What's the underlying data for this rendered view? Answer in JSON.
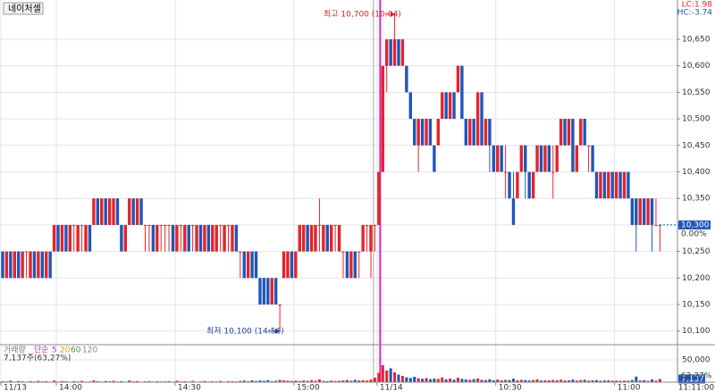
{
  "chart_data": {
    "type": "candlestick",
    "stock_name": "네이처셀",
    "lc_label": "LC:1.98",
    "hc_label": "HC:-3.74",
    "high_annotation": "최고 10,700 (10:04)",
    "low_annotation": "최저 10,100 (14:56)",
    "current_price": {
      "value": 10300,
      "label": "10,300"
    },
    "change_label": "0.00%",
    "time_label": "11:11:00",
    "up_color": "#e3232c",
    "down_color": "#1f56b8",
    "grid": true,
    "ylim": [
      10076,
      10724
    ],
    "yticks": [
      {
        "value": 10100,
        "label": "10,100"
      },
      {
        "value": 10150,
        "label": "10,150"
      },
      {
        "value": 10200,
        "label": "10,200"
      },
      {
        "value": 10250,
        "label": "10,250"
      },
      {
        "value": 10300,
        "label": "10,300"
      },
      {
        "value": 10350,
        "label": "10,350"
      },
      {
        "value": 10400,
        "label": "10,400"
      },
      {
        "value": 10450,
        "label": "10,450"
      },
      {
        "value": 10500,
        "label": "10,500"
      },
      {
        "value": 10550,
        "label": "10,550"
      },
      {
        "value": 10600,
        "label": "10,600"
      },
      {
        "value": 10650,
        "label": "10,650"
      }
    ],
    "volume_legend": [
      "거래량",
      "단순",
      "5",
      "20",
      "60",
      "120"
    ],
    "volume_info": "7,137주(63,27%)",
    "last_volume": {
      "value": 7137,
      "label": "7,137"
    },
    "volume_ratio_label": "63.27%",
    "volume_ylim": [
      0,
      80000
    ],
    "volume_yticks": [
      {
        "value": 50000,
        "label": "50,000"
      }
    ],
    "categories": [
      "11/13",
      null,
      null,
      null,
      null,
      null,
      null,
      null,
      null,
      null,
      null,
      null,
      null,
      null,
      "14:00",
      null,
      null,
      null,
      null,
      null,
      null,
      null,
      null,
      null,
      null,
      null,
      null,
      null,
      null,
      null,
      null,
      null,
      null,
      null,
      null,
      null,
      null,
      null,
      null,
      null,
      null,
      null,
      null,
      null,
      "14:30",
      null,
      null,
      null,
      null,
      null,
      null,
      null,
      null,
      null,
      null,
      null,
      null,
      null,
      null,
      null,
      null,
      null,
      null,
      null,
      null,
      null,
      null,
      null,
      null,
      null,
      null,
      null,
      null,
      null,
      "15:00",
      null,
      null,
      null,
      null,
      null,
      null,
      null,
      null,
      null,
      null,
      null,
      null,
      null,
      null,
      null,
      null,
      null,
      null,
      null,
      null,
      "11/14",
      null,
      null,
      null,
      null,
      null,
      null,
      null,
      null,
      null,
      null,
      null,
      null,
      null,
      null,
      null,
      null,
      null,
      null,
      null,
      null,
      null,
      null,
      null,
      null,
      null,
      null,
      null,
      null,
      null,
      "10:30",
      null,
      null,
      null,
      null,
      null,
      null,
      null,
      null,
      null,
      null,
      null,
      null,
      null,
      null,
      null,
      null,
      null,
      null,
      null,
      null,
      null,
      null,
      null,
      null,
      null,
      null,
      null,
      null,
      null,
      "11:00",
      null,
      null,
      null,
      null,
      null,
      null,
      null,
      null,
      null,
      null,
      null
    ],
    "candles": [
      [
        10250,
        10250,
        10200,
        10200
      ],
      [
        10200,
        10250,
        10200,
        10250
      ],
      [
        10250,
        10250,
        10200,
        10200
      ],
      [
        10200,
        10250,
        10200,
        10250
      ],
      [
        10250,
        10250,
        10200,
        10200
      ],
      [
        10200,
        10250,
        10200,
        10250
      ],
      [
        10250,
        10250,
        10200,
        10250
      ],
      [
        10200,
        10250,
        10200,
        10250
      ],
      [
        10250,
        10250,
        10200,
        10200
      ],
      [
        10200,
        10250,
        10200,
        10250
      ],
      [
        10250,
        10250,
        10200,
        10200
      ],
      [
        10200,
        10250,
        10200,
        10250
      ],
      [
        10250,
        10250,
        10200,
        10200
      ],
      [
        10250,
        10300,
        10250,
        10300
      ],
      [
        10300,
        10300,
        10250,
        10250
      ],
      [
        10250,
        10300,
        10250,
        10300
      ],
      [
        10300,
        10300,
        10250,
        10250
      ],
      [
        10250,
        10300,
        10250,
        10300
      ],
      [
        10300,
        10300,
        10250,
        10300
      ],
      [
        10250,
        10300,
        10250,
        10300
      ],
      [
        10300,
        10300,
        10250,
        10300
      ],
      [
        10250,
        10300,
        10250,
        10300
      ],
      [
        10300,
        10300,
        10250,
        10250
      ],
      [
        10300,
        10350,
        10300,
        10350
      ],
      [
        10350,
        10350,
        10300,
        10300
      ],
      [
        10300,
        10350,
        10300,
        10350
      ],
      [
        10350,
        10350,
        10300,
        10300
      ],
      [
        10300,
        10350,
        10300,
        10350
      ],
      [
        10300,
        10350,
        10300,
        10350
      ],
      [
        10350,
        10350,
        10300,
        10300
      ],
      [
        10300,
        10300,
        10250,
        10250
      ],
      [
        10250,
        10300,
        10250,
        10300
      ],
      [
        10300,
        10350,
        10300,
        10350
      ],
      [
        10350,
        10350,
        10300,
        10300
      ],
      [
        10300,
        10350,
        10300,
        10350
      ],
      [
        10350,
        10350,
        10300,
        10300
      ],
      [
        10300,
        10300,
        10250,
        10300
      ],
      [
        10300,
        10300,
        10250,
        10300
      ],
      [
        10300,
        10300,
        10250,
        10250
      ],
      [
        10250,
        10300,
        10250,
        10300
      ],
      [
        10300,
        10300,
        10250,
        10300
      ],
      [
        10300,
        10300,
        10250,
        10300
      ],
      [
        10300,
        10300,
        10250,
        10300
      ],
      [
        10300,
        10300,
        10250,
        10250
      ],
      [
        10250,
        10300,
        10250,
        10300
      ],
      [
        10300,
        10300,
        10250,
        10300
      ],
      [
        10250,
        10300,
        10250,
        10300
      ],
      [
        10300,
        10300,
        10250,
        10250
      ],
      [
        10300,
        10300,
        10250,
        10300
      ],
      [
        10250,
        10300,
        10250,
        10300
      ],
      [
        10300,
        10300,
        10250,
        10250
      ],
      [
        10250,
        10300,
        10250,
        10300
      ],
      [
        10300,
        10300,
        10250,
        10250
      ],
      [
        10250,
        10300,
        10250,
        10300
      ],
      [
        10250,
        10300,
        10250,
        10300
      ],
      [
        10300,
        10300,
        10250,
        10300
      ],
      [
        10250,
        10300,
        10250,
        10300
      ],
      [
        10300,
        10300,
        10250,
        10300
      ],
      [
        10250,
        10300,
        10250,
        10300
      ],
      [
        10300,
        10300,
        10250,
        10250
      ],
      [
        10250,
        10250,
        10200,
        10250
      ],
      [
        10250,
        10250,
        10200,
        10200
      ],
      [
        10200,
        10250,
        10200,
        10250
      ],
      [
        10250,
        10250,
        10200,
        10200
      ],
      [
        10250,
        10250,
        10200,
        10200
      ],
      [
        10200,
        10200,
        10150,
        10150
      ],
      [
        10200,
        10200,
        10150,
        10150
      ],
      [
        10200,
        10200,
        10150,
        10150
      ],
      [
        10150,
        10200,
        10150,
        10200
      ],
      [
        10200,
        10200,
        10150,
        10150
      ],
      [
        10150,
        10150,
        10100,
        10150
      ],
      [
        10200,
        10250,
        10200,
        10250
      ],
      [
        10200,
        10250,
        10200,
        10250
      ],
      [
        10250,
        10250,
        10200,
        10200
      ],
      [
        10200,
        10250,
        10200,
        10250
      ],
      [
        10250,
        10300,
        10250,
        10300
      ],
      [
        10250,
        10300,
        10250,
        10300
      ],
      [
        10300,
        10300,
        10250,
        10250
      ],
      [
        10250,
        10300,
        10250,
        10300
      ],
      [
        10250,
        10300,
        10250,
        10300
      ],
      [
        10300,
        10350,
        10250,
        10300
      ],
      [
        10250,
        10300,
        10250,
        10300
      ],
      [
        10300,
        10300,
        10250,
        10250
      ],
      [
        10250,
        10300,
        10250,
        10300
      ],
      [
        10300,
        10300,
        10250,
        10300
      ],
      [
        10250,
        10300,
        10250,
        10300
      ],
      [
        10250,
        10250,
        10200,
        10250
      ],
      [
        10250,
        10250,
        10200,
        10200
      ],
      [
        10200,
        10250,
        10200,
        10250
      ],
      [
        10250,
        10250,
        10200,
        10200
      ],
      [
        10250,
        10250,
        10200,
        10250
      ],
      [
        10250,
        10300,
        10250,
        10300
      ],
      [
        10300,
        10300,
        10250,
        10300
      ],
      [
        10250,
        10300,
        10200,
        10300
      ],
      [
        10300,
        10300,
        10250,
        10300
      ],
      [
        10300,
        10400,
        10300,
        10400
      ],
      [
        10400,
        10600,
        10400,
        10600
      ],
      [
        10600,
        10650,
        10550,
        10650
      ],
      [
        10650,
        10650,
        10600,
        10600
      ],
      [
        10600,
        10700,
        10600,
        10650
      ],
      [
        10650,
        10650,
        10600,
        10600
      ],
      [
        10600,
        10650,
        10600,
        10650
      ],
      [
        10600,
        10600,
        10550,
        10550
      ],
      [
        10550,
        10550,
        10500,
        10500
      ],
      [
        10500,
        10500,
        10450,
        10450
      ],
      [
        10450,
        10500,
        10400,
        10500
      ],
      [
        10500,
        10500,
        10450,
        10450
      ],
      [
        10450,
        10500,
        10450,
        10500
      ],
      [
        10500,
        10500,
        10450,
        10450
      ],
      [
        10450,
        10450,
        10400,
        10400
      ],
      [
        10450,
        10500,
        10450,
        10500
      ],
      [
        10500,
        10550,
        10500,
        10550
      ],
      [
        10550,
        10550,
        10500,
        10500
      ],
      [
        10500,
        10550,
        10500,
        10550
      ],
      [
        10550,
        10550,
        10500,
        10500
      ],
      [
        10550,
        10600,
        10550,
        10600
      ],
      [
        10600,
        10600,
        10500,
        10500
      ],
      [
        10500,
        10500,
        10450,
        10450
      ],
      [
        10450,
        10500,
        10450,
        10500
      ],
      [
        10500,
        10500,
        10450,
        10450
      ],
      [
        10450,
        10550,
        10450,
        10550
      ],
      [
        10550,
        10550,
        10450,
        10450
      ],
      [
        10450,
        10500,
        10450,
        10500
      ],
      [
        10500,
        10500,
        10400,
        10450
      ],
      [
        10450,
        10450,
        10400,
        10400
      ],
      [
        10400,
        10450,
        10400,
        10450
      ],
      [
        10450,
        10450,
        10400,
        10400
      ],
      [
        10400,
        10450,
        10350,
        10400
      ],
      [
        10400,
        10400,
        10350,
        10350
      ],
      [
        10350,
        10400,
        10300,
        10300
      ],
      [
        10350,
        10400,
        10350,
        10400
      ],
      [
        10400,
        10450,
        10400,
        10450
      ],
      [
        10450,
        10450,
        10350,
        10400
      ],
      [
        10400,
        10400,
        10350,
        10350
      ],
      [
        10350,
        10400,
        10350,
        10400
      ],
      [
        10400,
        10450,
        10400,
        10450
      ],
      [
        10450,
        10450,
        10400,
        10400
      ],
      [
        10400,
        10450,
        10400,
        10450
      ],
      [
        10450,
        10450,
        10400,
        10400
      ],
      [
        10400,
        10450,
        10350,
        10400
      ],
      [
        10400,
        10450,
        10400,
        10450
      ],
      [
        10450,
        10500,
        10450,
        10500
      ],
      [
        10500,
        10500,
        10450,
        10450
      ],
      [
        10450,
        10500,
        10450,
        10500
      ],
      [
        10500,
        10500,
        10400,
        10400
      ],
      [
        10400,
        10450,
        10400,
        10450
      ],
      [
        10450,
        10500,
        10450,
        10500
      ],
      [
        10500,
        10500,
        10450,
        10450
      ],
      [
        10450,
        10450,
        10400,
        10450
      ],
      [
        10450,
        10450,
        10400,
        10400
      ],
      [
        10400,
        10400,
        10350,
        10350
      ],
      [
        10350,
        10400,
        10350,
        10400
      ],
      [
        10400,
        10400,
        10350,
        10350
      ],
      [
        10350,
        10400,
        10350,
        10400
      ],
      [
        10400,
        10400,
        10350,
        10350
      ],
      [
        10350,
        10400,
        10350,
        10400
      ],
      [
        10400,
        10400,
        10350,
        10350
      ],
      [
        10350,
        10400,
        10350,
        10400
      ],
      [
        10400,
        10400,
        10350,
        10350
      ],
      [
        10350,
        10350,
        10300,
        10300
      ],
      [
        10350,
        10350,
        10250,
        10300
      ],
      [
        10300,
        10350,
        10300,
        10350
      ],
      [
        10350,
        10350,
        10300,
        10300
      ],
      [
        10300,
        10350,
        10300,
        10350
      ],
      [
        10350,
        10350,
        10250,
        10300
      ],
      [
        10300,
        10350,
        10300,
        10300
      ],
      [
        10300,
        10300,
        10250,
        10300
      ]
    ],
    "volumes": [
      2100,
      1500,
      3200,
      1200,
      2600,
      1800,
      900,
      2400,
      1300,
      2900,
      1700,
      2200,
      1100,
      3600,
      1400,
      2500,
      1900,
      1000,
      2300,
      1600,
      2800,
      1200,
      1500,
      4100,
      2000,
      1300,
      2700,
      1800,
      3100,
      1400,
      2200,
      1100,
      3800,
      1700,
      2400,
      1000,
      1900,
      2600,
      1300,
      2100,
      1500,
      1800,
      2300,
      1200,
      3300,
      1600,
      2000,
      1400,
      2900,
      1100,
      1700,
      2500,
      1300,
      2000,
      1500,
      2700,
      1200,
      2200,
      1900,
      1600,
      2800,
      3500,
      2100,
      4200,
      2600,
      3900,
      3100,
      4600,
      2400,
      3000,
      5200,
      4100,
      3300,
      2700,
      3600,
      2500,
      3800,
      2900,
      4400,
      3200,
      6100,
      2800,
      2300,
      3500,
      2700,
      3100,
      4000,
      4700,
      3300,
      5400,
      3900,
      4500,
      3600,
      5800,
      9800,
      21000,
      38000,
      26000,
      31000,
      22000,
      17000,
      14000,
      11000,
      9500,
      12000,
      8800,
      7600,
      9200,
      6800,
      8100,
      7300,
      10500,
      6400,
      7900,
      5600,
      9800,
      7200,
      6100,
      5400,
      6900,
      8400,
      5200,
      4800,
      6600,
      4300,
      5900,
      3900,
      5100,
      4600,
      7800,
      4200,
      5300,
      4700,
      3800,
      4900,
      6200,
      3600,
      4400,
      3900,
      5000,
      4100,
      5500,
      3700,
      4300,
      6000,
      3500,
      4800,
      5200,
      3400,
      4000,
      4600,
      3300,
      3800,
      4200,
      3100,
      3700,
      2900,
      3500,
      3200,
      4900,
      12500,
      3800,
      4400,
      3000,
      6300,
      3600,
      7137
    ]
  }
}
